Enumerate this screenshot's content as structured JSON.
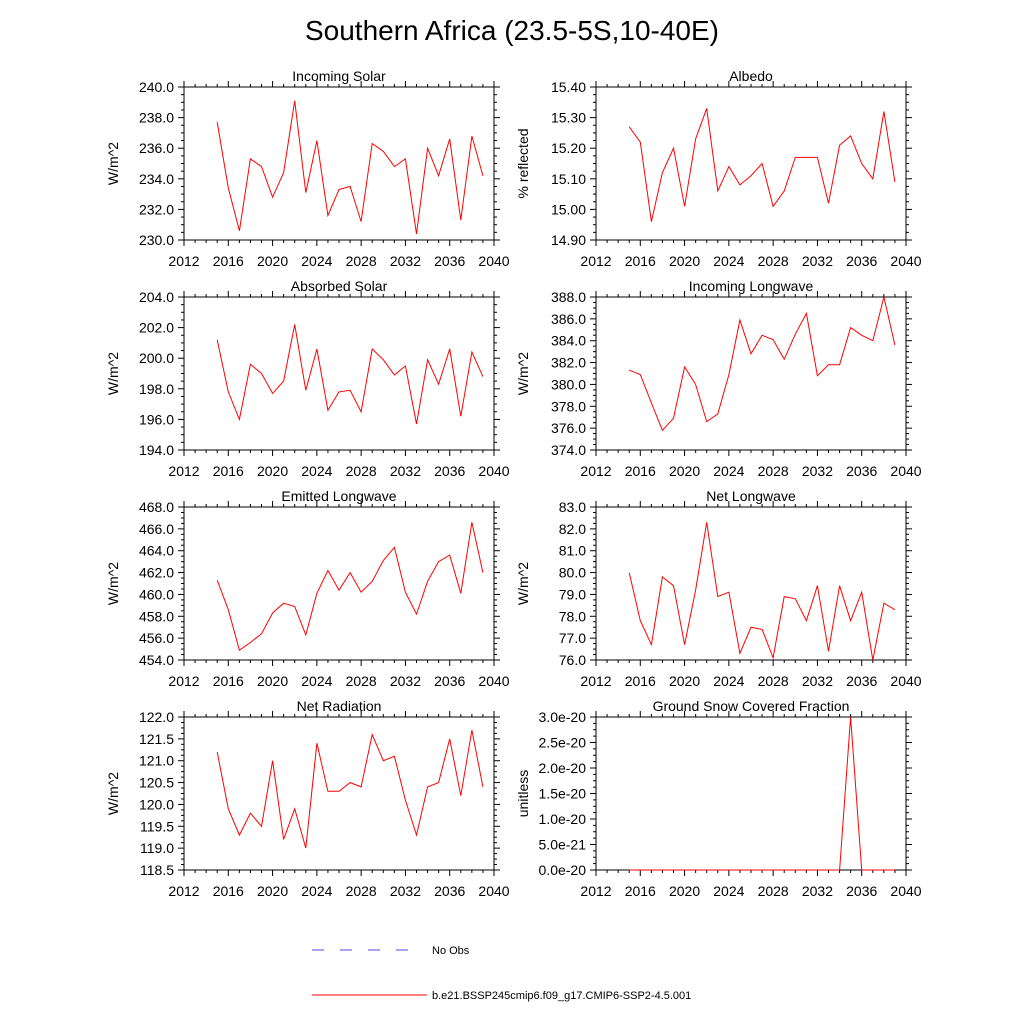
{
  "figure": {
    "title": "Southern Africa (23.5-5S,10-40E)"
  },
  "legend": {
    "entries": [
      {
        "label": "No Obs",
        "color": "#4a4ae0",
        "style": "dashed"
      },
      {
        "label": "b.e21.BSSP245cmip6.f09_g17.CMIP6-SSP2-4.5.001",
        "color": "#ff0000",
        "style": "solid"
      }
    ]
  },
  "chart_data": [
    {
      "type": "line",
      "title": "Incoming Solar",
      "ylabel": "W/m^2",
      "xlim": [
        2012,
        2040
      ],
      "ylim": [
        230.0,
        240.0
      ],
      "xticks": [
        "2012",
        "2016",
        "2020",
        "2024",
        "2028",
        "2032",
        "2036",
        "2040"
      ],
      "yticks": [
        "230.0",
        "232.0",
        "234.0",
        "236.0",
        "238.0",
        "240.0"
      ],
      "x": [
        2015,
        2016,
        2017,
        2018,
        2019,
        2020,
        2021,
        2022,
        2023,
        2024,
        2025,
        2026,
        2027,
        2028,
        2029,
        2030,
        2031,
        2032,
        2033,
        2034,
        2035,
        2036,
        2037,
        2038,
        2039
      ],
      "series": [
        {
          "name": "b.e21.BSSP245cmip6.f09_g17.CMIP6-SSP2-4.5.001",
          "color": "#ff0000",
          "values": [
            237.7,
            233.4,
            230.6,
            235.3,
            234.8,
            232.8,
            234.4,
            239.1,
            233.1,
            236.5,
            231.6,
            233.3,
            233.5,
            231.2,
            236.3,
            235.8,
            234.8,
            235.3,
            230.4,
            236.0,
            234.2,
            236.6,
            231.3,
            236.8,
            234.2
          ]
        }
      ]
    },
    {
      "type": "line",
      "title": "Albedo",
      "ylabel": "% reflected",
      "xlim": [
        2012,
        2040
      ],
      "ylim": [
        14.9,
        15.4
      ],
      "xticks": [
        "2012",
        "2016",
        "2020",
        "2024",
        "2028",
        "2032",
        "2036",
        "2040"
      ],
      "yticks": [
        "14.90",
        "15.00",
        "15.10",
        "15.20",
        "15.30",
        "15.40"
      ],
      "x": [
        2015,
        2016,
        2017,
        2018,
        2019,
        2020,
        2021,
        2022,
        2023,
        2024,
        2025,
        2026,
        2027,
        2028,
        2029,
        2030,
        2031,
        2032,
        2033,
        2034,
        2035,
        2036,
        2037,
        2038,
        2039
      ],
      "series": [
        {
          "name": "b.e21.BSSP245cmip6.f09_g17.CMIP6-SSP2-4.5.001",
          "color": "#ff0000",
          "values": [
            15.27,
            15.22,
            14.96,
            15.12,
            15.2,
            15.01,
            15.23,
            15.33,
            15.06,
            15.14,
            15.08,
            15.11,
            15.15,
            15.01,
            15.06,
            15.17,
            15.17,
            15.17,
            15.02,
            15.21,
            15.24,
            15.15,
            15.1,
            15.32,
            15.09
          ]
        }
      ]
    },
    {
      "type": "line",
      "title": "Absorbed Solar",
      "ylabel": "W/m^2",
      "xlim": [
        2012,
        2040
      ],
      "ylim": [
        194.0,
        204.0
      ],
      "xticks": [
        "2012",
        "2016",
        "2020",
        "2024",
        "2028",
        "2032",
        "2036",
        "2040"
      ],
      "yticks": [
        "194.0",
        "196.0",
        "198.0",
        "200.0",
        "202.0",
        "204.0"
      ],
      "x": [
        2015,
        2016,
        2017,
        2018,
        2019,
        2020,
        2021,
        2022,
        2023,
        2024,
        2025,
        2026,
        2027,
        2028,
        2029,
        2030,
        2031,
        2032,
        2033,
        2034,
        2035,
        2036,
        2037,
        2038,
        2039
      ],
      "series": [
        {
          "name": "b.e21.BSSP245cmip6.f09_g17.CMIP6-SSP2-4.5.001",
          "color": "#ff0000",
          "values": [
            201.2,
            197.8,
            196.0,
            199.6,
            199.0,
            197.7,
            198.5,
            202.2,
            197.9,
            200.6,
            196.6,
            197.8,
            197.9,
            196.5,
            200.6,
            199.9,
            198.9,
            199.5,
            195.7,
            199.9,
            198.3,
            200.6,
            196.2,
            200.4,
            198.8
          ]
        }
      ]
    },
    {
      "type": "line",
      "title": "Incoming Longwave",
      "ylabel": "W/m^2",
      "xlim": [
        2012,
        2040
      ],
      "ylim": [
        374.0,
        388.0
      ],
      "xticks": [
        "2012",
        "2016",
        "2020",
        "2024",
        "2028",
        "2032",
        "2036",
        "2040"
      ],
      "yticks": [
        "374.0",
        "376.0",
        "378.0",
        "380.0",
        "382.0",
        "384.0",
        "386.0",
        "388.0"
      ],
      "x": [
        2015,
        2016,
        2017,
        2018,
        2019,
        2020,
        2021,
        2022,
        2023,
        2024,
        2025,
        2026,
        2027,
        2028,
        2029,
        2030,
        2031,
        2032,
        2033,
        2034,
        2035,
        2036,
        2037,
        2038,
        2039
      ],
      "series": [
        {
          "name": "b.e21.BSSP245cmip6.f09_g17.CMIP6-SSP2-4.5.001",
          "color": "#ff0000",
          "values": [
            381.3,
            380.9,
            378.3,
            375.8,
            376.9,
            381.6,
            380.0,
            376.6,
            377.3,
            380.9,
            385.9,
            382.8,
            384.5,
            384.1,
            382.3,
            384.6,
            386.5,
            380.8,
            381.8,
            381.8,
            385.2,
            384.5,
            384.0,
            388.0,
            383.6
          ]
        }
      ]
    },
    {
      "type": "line",
      "title": "Emitted Longwave",
      "ylabel": "W/m^2",
      "xlim": [
        2012,
        2040
      ],
      "ylim": [
        454.0,
        468.0
      ],
      "xticks": [
        "2012",
        "2016",
        "2020",
        "2024",
        "2028",
        "2032",
        "2036",
        "2040"
      ],
      "yticks": [
        "454.0",
        "456.0",
        "458.0",
        "460.0",
        "462.0",
        "464.0",
        "466.0",
        "468.0"
      ],
      "x": [
        2015,
        2016,
        2017,
        2018,
        2019,
        2020,
        2021,
        2022,
        2023,
        2024,
        2025,
        2026,
        2027,
        2028,
        2029,
        2030,
        2031,
        2032,
        2033,
        2034,
        2035,
        2036,
        2037,
        2038,
        2039
      ],
      "series": [
        {
          "name": "b.e21.BSSP245cmip6.f09_g17.CMIP6-SSP2-4.5.001",
          "color": "#ff0000",
          "values": [
            461.3,
            458.6,
            454.9,
            455.6,
            456.4,
            458.3,
            459.2,
            458.9,
            456.3,
            460.1,
            462.2,
            460.4,
            462.0,
            460.2,
            461.2,
            463.1,
            464.3,
            460.2,
            458.2,
            461.2,
            463.0,
            463.6,
            460.1,
            466.6,
            462.0
          ]
        }
      ]
    },
    {
      "type": "line",
      "title": "Net Longwave",
      "ylabel": "W/m^2",
      "xlim": [
        2012,
        2040
      ],
      "ylim": [
        76.0,
        83.0
      ],
      "xticks": [
        "2012",
        "2016",
        "2020",
        "2024",
        "2028",
        "2032",
        "2036",
        "2040"
      ],
      "yticks": [
        "76.0",
        "77.0",
        "78.0",
        "79.0",
        "80.0",
        "81.0",
        "82.0",
        "83.0"
      ],
      "x": [
        2015,
        2016,
        2017,
        2018,
        2019,
        2020,
        2021,
        2022,
        2023,
        2024,
        2025,
        2026,
        2027,
        2028,
        2029,
        2030,
        2031,
        2032,
        2033,
        2034,
        2035,
        2036,
        2037,
        2038,
        2039
      ],
      "series": [
        {
          "name": "b.e21.BSSP245cmip6.f09_g17.CMIP6-SSP2-4.5.001",
          "color": "#ff0000",
          "values": [
            80.0,
            77.8,
            76.7,
            79.8,
            79.4,
            76.7,
            79.2,
            82.3,
            78.9,
            79.1,
            76.3,
            77.5,
            77.4,
            76.1,
            78.9,
            78.8,
            77.8,
            79.4,
            76.4,
            79.4,
            77.8,
            79.1,
            76.0,
            78.6,
            78.3
          ]
        }
      ]
    },
    {
      "type": "line",
      "title": "Net Radiation",
      "ylabel": "W/m^2",
      "xlim": [
        2012,
        2040
      ],
      "ylim": [
        118.5,
        122.0
      ],
      "xticks": [
        "2012",
        "2016",
        "2020",
        "2024",
        "2028",
        "2032",
        "2036",
        "2040"
      ],
      "yticks": [
        "118.5",
        "119.0",
        "119.5",
        "120.0",
        "120.5",
        "121.0",
        "121.5",
        "122.0"
      ],
      "x": [
        2015,
        2016,
        2017,
        2018,
        2019,
        2020,
        2021,
        2022,
        2023,
        2024,
        2025,
        2026,
        2027,
        2028,
        2029,
        2030,
        2031,
        2032,
        2033,
        2034,
        2035,
        2036,
        2037,
        2038,
        2039
      ],
      "series": [
        {
          "name": "b.e21.BSSP245cmip6.f09_g17.CMIP6-SSP2-4.5.001",
          "color": "#ff0000",
          "values": [
            121.2,
            119.9,
            119.3,
            119.8,
            119.5,
            121.0,
            119.2,
            119.9,
            119.0,
            121.4,
            120.3,
            120.3,
            120.5,
            120.4,
            121.6,
            121.0,
            121.1,
            120.1,
            119.3,
            120.4,
            120.5,
            121.5,
            120.2,
            121.7,
            120.4
          ]
        }
      ]
    },
    {
      "type": "line",
      "title": "Ground Snow Covered Fraction",
      "ylabel": "unitless",
      "xlim": [
        2012,
        2040
      ],
      "ylim": [
        0,
        3e-20
      ],
      "xticks": [
        "2012",
        "2016",
        "2020",
        "2024",
        "2028",
        "2032",
        "2036",
        "2040"
      ],
      "yticks": [
        "0.0e-20",
        "5.0e-21",
        "1.0e-20",
        "1.5e-20",
        "2.0e-20",
        "2.5e-20",
        "3.0e-20"
      ],
      "x": [
        2015,
        2016,
        2017,
        2018,
        2019,
        2020,
        2021,
        2022,
        2023,
        2024,
        2025,
        2026,
        2027,
        2028,
        2029,
        2030,
        2031,
        2032,
        2033,
        2034,
        2035,
        2036,
        2037,
        2038,
        2039
      ],
      "series": [
        {
          "name": "b.e21.BSSP245cmip6.f09_g17.CMIP6-SSP2-4.5.001",
          "color": "#ff0000",
          "values": [
            0,
            0,
            0,
            0,
            0,
            0,
            0,
            0,
            0,
            0,
            0,
            0,
            0,
            0,
            0,
            0,
            0,
            0,
            0,
            0,
            3e-20,
            0,
            0,
            0,
            0
          ]
        }
      ]
    }
  ]
}
